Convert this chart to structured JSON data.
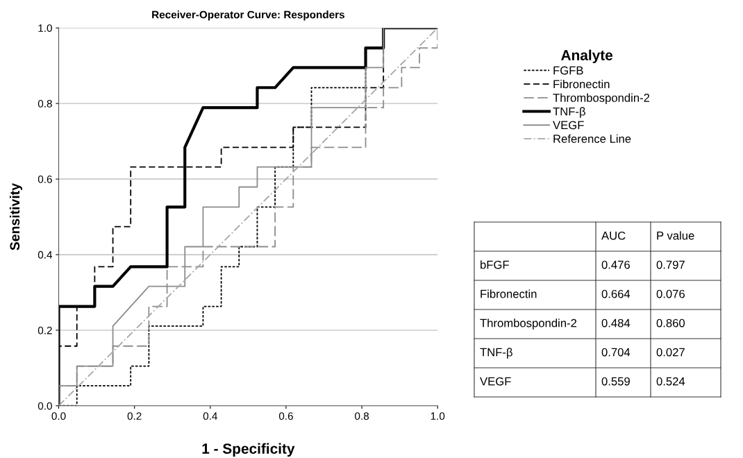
{
  "chart_data": {
    "type": "line",
    "title": "Receiver-Operator Curve: Responders",
    "xlabel": "1 - Specificity",
    "ylabel": "Sensitivity",
    "legend_title": "Analyte",
    "legend": "top right",
    "grid": "y",
    "xlim": [
      0,
      1
    ],
    "ylim": [
      0,
      1
    ],
    "xticks": [
      {
        "value": 0,
        "label": "0.0"
      },
      {
        "value": 0.2,
        "label": "0.2"
      },
      {
        "value": 0.4,
        "label": "0.4"
      },
      {
        "value": 0.6,
        "label": "0.6"
      },
      {
        "value": 0.8,
        "label": "0.8"
      },
      {
        "value": 1,
        "label": "1.0"
      }
    ],
    "yticks": [
      {
        "value": 0,
        "label": "0.0"
      },
      {
        "value": 0.2,
        "label": "0.2"
      },
      {
        "value": 0.4,
        "label": "0.4"
      },
      {
        "value": 0.6,
        "label": "0.6"
      },
      {
        "value": 0.8,
        "label": "0.8"
      },
      {
        "value": 1,
        "label": "1.0"
      }
    ],
    "series": [
      {
        "name": "FGFB",
        "color": "#000000",
        "line_style": "dotted",
        "x": [
          0,
          0.048,
          0.048,
          0.19,
          0.19,
          0.238,
          0.238,
          0.381,
          0.381,
          0.429,
          0.429,
          0.476,
          0.476,
          0.524,
          0.524,
          0.571,
          0.571,
          0.619,
          0.619,
          0.667,
          0.667,
          0.81,
          0.81,
          0.857,
          0.857,
          1
        ],
        "values": [
          0,
          0,
          0.053,
          0.053,
          0.105,
          0.105,
          0.211,
          0.211,
          0.263,
          0.263,
          0.368,
          0.368,
          0.421,
          0.421,
          0.526,
          0.526,
          0.632,
          0.632,
          0.737,
          0.737,
          0.842,
          0.842,
          0.947,
          0.947,
          1,
          1
        ]
      },
      {
        "name": "Fibronectin",
        "color": "#000000",
        "line_style": "dashed",
        "x": [
          0,
          0,
          0.048,
          0.048,
          0.095,
          0.095,
          0.143,
          0.143,
          0.19,
          0.19,
          0.429,
          0.429,
          0.619,
          0.619,
          0.81,
          0.81,
          0.857,
          0.857,
          1
        ],
        "values": [
          0,
          0.158,
          0.158,
          0.263,
          0.263,
          0.368,
          0.368,
          0.474,
          0.474,
          0.632,
          0.632,
          0.684,
          0.684,
          0.737,
          0.737,
          0.842,
          0.842,
          1,
          1
        ]
      },
      {
        "name": "Thrombospondin-2",
        "color": "#8c8c8c",
        "line_style": "dashed",
        "x": [
          0,
          0,
          0.048,
          0.048,
          0.143,
          0.143,
          0.238,
          0.238,
          0.286,
          0.286,
          0.381,
          0.381,
          0.571,
          0.571,
          0.619,
          0.619,
          0.667,
          0.667,
          0.81,
          0.81,
          0.857,
          0.857,
          0.905,
          0.905,
          0.952,
          0.952,
          1,
          1
        ],
        "values": [
          0,
          0.053,
          0.053,
          0.105,
          0.105,
          0.158,
          0.158,
          0.263,
          0.263,
          0.368,
          0.368,
          0.421,
          0.421,
          0.526,
          0.526,
          0.632,
          0.632,
          0.684,
          0.684,
          0.789,
          0.789,
          0.842,
          0.842,
          0.895,
          0.895,
          0.947,
          0.947,
          1
        ]
      },
      {
        "name": "TNF-β",
        "color": "#000000",
        "line_style": "solid",
        "x": [
          0,
          0,
          0.095,
          0.095,
          0.143,
          0.19,
          0.286,
          0.286,
          0.333,
          0.333,
          0.381,
          0.524,
          0.524,
          0.571,
          0.619,
          0.81,
          0.81,
          0.857,
          0.857,
          1
        ],
        "values": [
          0,
          0.263,
          0.263,
          0.316,
          0.316,
          0.368,
          0.368,
          0.526,
          0.526,
          0.684,
          0.789,
          0.789,
          0.842,
          0.842,
          0.895,
          0.895,
          0.947,
          0.947,
          1,
          1
        ]
      },
      {
        "name": "VEGF",
        "color": "#8c8c8c",
        "line_style": "solid",
        "x": [
          0,
          0,
          0.048,
          0.048,
          0.143,
          0.143,
          0.238,
          0.333,
          0.333,
          0.381,
          0.381,
          0.476,
          0.476,
          0.524,
          0.524,
          0.667,
          0.667,
          0.81,
          0.81,
          0.857,
          0.857,
          1
        ],
        "values": [
          0,
          0.053,
          0.053,
          0.105,
          0.105,
          0.211,
          0.316,
          0.316,
          0.421,
          0.421,
          0.526,
          0.526,
          0.579,
          0.579,
          0.632,
          0.632,
          0.789,
          0.789,
          0.895,
          0.895,
          1,
          1
        ]
      },
      {
        "name": "Reference Line",
        "color": "#a6a6a6",
        "line_style": "dashed",
        "x": [
          0,
          1
        ],
        "values": [
          0,
          1
        ]
      }
    ],
    "annotations": [
      "AUC",
      "P value",
      "bFGF",
      "0.476",
      "0.797",
      "Fibronectin",
      "0.664",
      "0.076",
      "Thrombospondin-2",
      "0.484",
      "0.860",
      "TNF-β",
      "0.704",
      "0.027",
      "VEGF",
      "0.559",
      "0.524"
    ]
  }
}
